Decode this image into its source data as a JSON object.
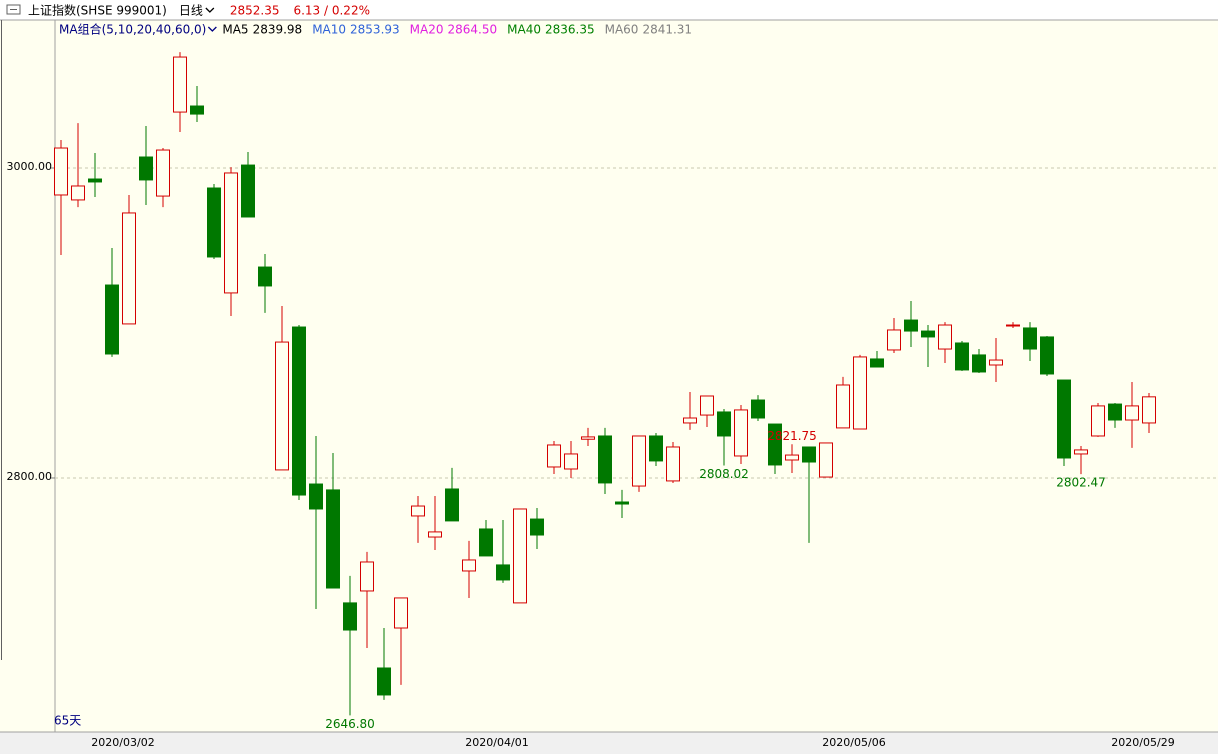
{
  "chart_data": {
    "type": "candlestick",
    "title": "上证指数(SHSE 999001)",
    "period": "日线",
    "last_price": 2852.35,
    "change_text": "6.13 / 0.22%",
    "ma_legend": {
      "label": "MA组合(5,10,20,40,60,0)",
      "items": [
        {
          "name": "MA5",
          "value": 2839.98,
          "color": "#000000"
        },
        {
          "name": "MA10",
          "value": 2853.93,
          "color": "#2f62d8"
        },
        {
          "name": "MA20",
          "value": 2864.5,
          "value_label": "2864.50",
          "color": "#e020e0"
        },
        {
          "name": "MA40",
          "value": 2836.35,
          "color": "#008000"
        },
        {
          "name": "MA60",
          "value": 2841.31,
          "color": "#808080"
        }
      ]
    },
    "span_label": "65天",
    "categories": [
      null,
      null,
      null,
      null,
      "2020/03/02",
      null,
      null,
      null,
      null,
      null,
      null,
      null,
      null,
      null,
      null,
      null,
      null,
      null,
      null,
      null,
      null,
      null,
      null,
      null,
      null,
      null,
      "2020/04/01",
      null,
      null,
      null,
      null,
      null,
      null,
      null,
      null,
      null,
      null,
      null,
      null,
      null,
      null,
      null,
      null,
      null,
      null,
      null,
      null,
      "2020/05/06",
      null,
      null,
      null,
      null,
      null,
      null,
      null,
      null,
      null,
      null,
      null,
      null,
      null,
      null,
      null,
      null,
      "2020/05/29"
    ],
    "open": [
      2982.6,
      2979.4,
      2992.9,
      2924.5,
      2899.4,
      3007.1,
      2981.9,
      3036.1,
      3040.0,
      2987.1,
      2919.4,
      3001.9,
      2936.1,
      2805.2,
      2897.4,
      2796.1,
      2792.3,
      2719.4,
      2727.1,
      2677.4,
      2703.2,
      2775.5,
      2761.9,
      2792.9,
      2740.0,
      2767.1,
      2743.9,
      2719.4,
      2773.5,
      2807.1,
      2805.8,
      2825.0,
      2827.1,
      2784.5,
      2794.8,
      2827.1,
      2798.1,
      2835.5,
      2840.6,
      2842.6,
      2814.2,
      2850.3,
      2834.8,
      2811.6,
      2820.0,
      2800.6,
      2832.3,
      2831.6,
      2876.8,
      2882.6,
      2901.9,
      2894.8,
      2883.2,
      2887.1,
      2879.4,
      2872.9,
      2898.1,
      2896.8,
      2891.0,
      2863.2,
      2815.5,
      2827.1,
      2847.7,
      2837.4,
      2835.5
    ],
    "high": [
      3018.1,
      3029.0,
      3009.7,
      2948.4,
      2982.6,
      3027.1,
      3012.9,
      3074.8,
      3052.9,
      2989.7,
      3000.6,
      3010.3,
      2944.5,
      2911.0,
      2898.7,
      2827.1,
      2816.1,
      2736.8,
      2752.3,
      2703.2,
      2722.6,
      2788.4,
      2788.4,
      2806.5,
      2759.4,
      2772.9,
      2772.9,
      2780.0,
      2780.6,
      2823.9,
      2823.9,
      2832.3,
      2832.3,
      2792.3,
      2827.1,
      2829.0,
      2823.2,
      2855.5,
      2852.9,
      2844.5,
      2847.1,
      2853.5,
      2834.8,
      2821.75,
      2820.0,
      2822.6,
      2865.2,
      2879.4,
      2881.9,
      2903.2,
      2914.2,
      2898.7,
      2900.6,
      2888.4,
      2883.2,
      2890.3,
      2900.6,
      2900.6,
      2891.6,
      2863.2,
      2820.6,
      2848.4,
      2848.4,
      2861.9,
      2854.8
    ],
    "low": [
      2943.9,
      2974.8,
      2981.3,
      2878.1,
      2899.4,
      2976.1,
      2974.8,
      3023.2,
      3029.7,
      2941.3,
      2904.5,
      2968.4,
      2906.5,
      2805.2,
      2785.8,
      2715.5,
      2729.0,
      2646.8,
      2690.3,
      2656.8,
      2666.5,
      2758.1,
      2753.5,
      2772.3,
      2722.6,
      2749.7,
      2732.3,
      2719.4,
      2754.2,
      2802.6,
      2800.0,
      2820.6,
      2789.7,
      2774.2,
      2791.0,
      2807.7,
      2796.8,
      2831.0,
      2832.9,
      2808.02,
      2809.0,
      2836.8,
      2802.6,
      2803.2,
      2758.1,
      2800.6,
      2832.3,
      2831.6,
      2871.6,
      2880.6,
      2884.5,
      2871.6,
      2874.2,
      2869.0,
      2867.7,
      2861.9,
      2896.8,
      2875.5,
      2865.8,
      2807.7,
      2802.47,
      2826.5,
      2832.3,
      2819.4,
      2829.0
    ],
    "close": [
      3012.9,
      2988.4,
      2991.0,
      2880.0,
      2971.0,
      2992.3,
      3011.6,
      3071.6,
      3034.8,
      2942.6,
      2996.8,
      2968.4,
      2923.9,
      2887.7,
      2789.0,
      2780.0,
      2729.0,
      2701.9,
      2745.8,
      2660.0,
      2722.6,
      2781.9,
      2765.2,
      2772.3,
      2747.1,
      2749.7,
      2734.2,
      2780.0,
      2763.2,
      2821.3,
      2815.5,
      2826.5,
      2796.8,
      2783.2,
      2827.1,
      2811.0,
      2820.0,
      2838.7,
      2852.9,
      2827.1,
      2843.9,
      2838.7,
      2808.4,
      2814.8,
      2810.3,
      2822.6,
      2860.0,
      2878.1,
      2871.6,
      2895.5,
      2894.8,
      2891.0,
      2898.7,
      2869.7,
      2868.4,
      2876.1,
      2898.7,
      2883.2,
      2867.1,
      2812.9,
      2818.1,
      2846.5,
      2837.4,
      2846.5,
      2852.35
    ],
    "up_color": "#d40000",
    "down_color": "#007800",
    "annotations": [
      {
        "value": 2646.8,
        "label": "2646.80"
      },
      {
        "value": 2821.75,
        "label": "2821.75"
      },
      {
        "value": 2808.02,
        "label": "2808.02"
      },
      {
        "value": 2802.47,
        "label": "2802.47"
      }
    ],
    "ylim": [
      2636.1,
      3095.5
    ],
    "yticks": [
      {
        "value": 2800,
        "label": "2800.00"
      },
      {
        "value": 3000,
        "label": "3000.00"
      }
    ],
    "grid": true
  }
}
